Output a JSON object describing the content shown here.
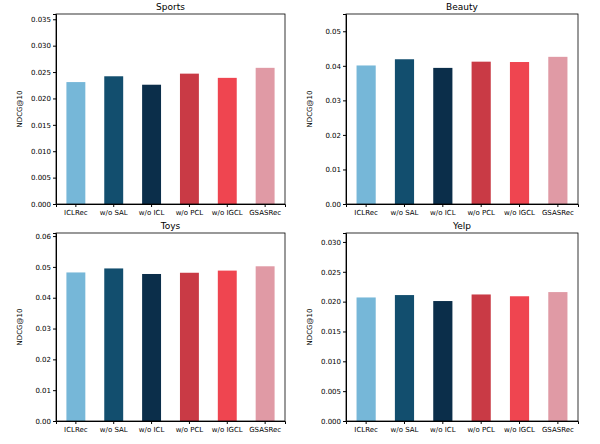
{
  "chart_data": [
    {
      "type": "bar",
      "title": "Sports",
      "y_label": "NDCG@10",
      "categories": [
        "ICLRec",
        "w/o SAL",
        "w/o ICL",
        "w/o PCL",
        "w/o IGCL",
        "GSASRec"
      ],
      "values": [
        0.0231,
        0.0242,
        0.0226,
        0.0247,
        0.0239,
        0.0258
      ],
      "colors": [
        "#76b7d8",
        "#124e6e",
        "#0b2e4a",
        "#c93a45",
        "#ef4550",
        "#e09aa5"
      ],
      "ylim": [
        0,
        0.036
      ],
      "yticks": [
        {
          "value": 0,
          "label": "0.000"
        },
        {
          "value": 0.005,
          "label": "0.005"
        },
        {
          "value": 0.01,
          "label": "0.010"
        },
        {
          "value": 0.015,
          "label": "0.015"
        },
        {
          "value": 0.02,
          "label": "0.020"
        },
        {
          "value": 0.025,
          "label": "0.025"
        },
        {
          "value": 0.03,
          "label": "0.030"
        },
        {
          "value": 0.035,
          "label": "0.035"
        }
      ]
    },
    {
      "type": "bar",
      "title": "Beauty",
      "y_label": "NDCG@10",
      "categories": [
        "ICLRec",
        "w/o SAL",
        "w/o ICL",
        "w/o PCL",
        "w/o IGCL",
        "GSASRec"
      ],
      "values": [
        0.0401,
        0.0419,
        0.0394,
        0.0412,
        0.0411,
        0.0426
      ],
      "colors": [
        "#76b7d8",
        "#124e6e",
        "#0b2e4a",
        "#c93a45",
        "#ef4550",
        "#e09aa5"
      ],
      "ylim": [
        0,
        0.055
      ],
      "yticks": [
        {
          "value": 0,
          "label": "0.00"
        },
        {
          "value": 0.01,
          "label": "0.01"
        },
        {
          "value": 0.02,
          "label": "0.02"
        },
        {
          "value": 0.03,
          "label": "0.03"
        },
        {
          "value": 0.04,
          "label": "0.04"
        },
        {
          "value": 0.05,
          "label": "0.05"
        }
      ]
    },
    {
      "type": "bar",
      "title": "Toys",
      "y_label": "NDCG@10",
      "categories": [
        "ICLRec",
        "w/o SAL",
        "w/o ICL",
        "w/o PCL",
        "w/o IGCL",
        "GSASRec"
      ],
      "values": [
        0.0482,
        0.0495,
        0.0477,
        0.0481,
        0.0488,
        0.0502
      ],
      "colors": [
        "#76b7d8",
        "#124e6e",
        "#0b2e4a",
        "#c93a45",
        "#ef4550",
        "#e09aa5"
      ],
      "ylim": [
        0,
        0.061
      ],
      "yticks": [
        {
          "value": 0,
          "label": "0.00"
        },
        {
          "value": 0.01,
          "label": "0.01"
        },
        {
          "value": 0.02,
          "label": "0.02"
        },
        {
          "value": 0.03,
          "label": "0.03"
        },
        {
          "value": 0.04,
          "label": "0.04"
        },
        {
          "value": 0.05,
          "label": "0.05"
        },
        {
          "value": 0.06,
          "label": "0.06"
        }
      ]
    },
    {
      "type": "bar",
      "title": "Yelp",
      "y_label": "NDCG@10",
      "categories": [
        "ICLRec",
        "w/o SAL",
        "w/o ICL",
        "w/o PCL",
        "w/o IGCL",
        "GSASRec"
      ],
      "values": [
        0.0207,
        0.0211,
        0.0201,
        0.0212,
        0.0209,
        0.0216
      ],
      "colors": [
        "#76b7d8",
        "#124e6e",
        "#0b2e4a",
        "#c93a45",
        "#ef4550",
        "#e09aa5"
      ],
      "ylim": [
        0,
        0.0315
      ],
      "yticks": [
        {
          "value": 0,
          "label": "0.000"
        },
        {
          "value": 0.005,
          "label": "0.005"
        },
        {
          "value": 0.01,
          "label": "0.010"
        },
        {
          "value": 0.015,
          "label": "0.015"
        },
        {
          "value": 0.02,
          "label": "0.020"
        },
        {
          "value": 0.025,
          "label": "0.025"
        },
        {
          "value": 0.03,
          "label": "0.030"
        }
      ]
    }
  ]
}
